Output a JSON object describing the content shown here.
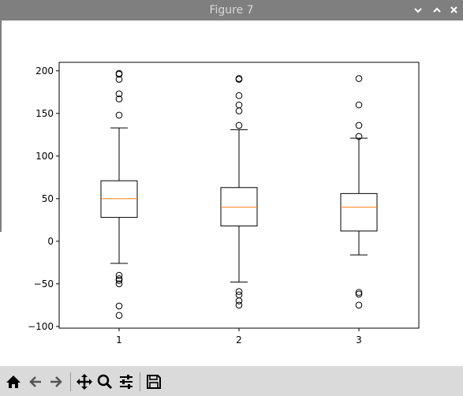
{
  "window": {
    "title": "Figure 7",
    "controls": {
      "minimize_icon": "chevron-down-icon",
      "maximize_icon": "chevron-up-icon",
      "close_icon": "close-icon"
    }
  },
  "toolbar": {
    "buttons": [
      {
        "name": "home-icon",
        "tooltip": "Reset original view"
      },
      {
        "name": "back-icon",
        "tooltip": "Back to previous view"
      },
      {
        "name": "forward-icon",
        "tooltip": "Forward to next view"
      },
      {
        "name": "pan-icon",
        "tooltip": "Pan axes"
      },
      {
        "name": "zoom-icon",
        "tooltip": "Zoom to rectangle"
      },
      {
        "name": "configure-subplots-icon",
        "tooltip": "Configure subplots"
      },
      {
        "name": "save-icon",
        "tooltip": "Save the figure"
      }
    ]
  },
  "colors": {
    "titlebar": "#7f7f7f",
    "toolbar": "#dadada",
    "median": "#ff7f0e",
    "box": "#000000"
  },
  "chart_data": {
    "type": "boxplot",
    "title": "",
    "xlabel": "",
    "ylabel": "",
    "ylim": [
      -102,
      210
    ],
    "xlim": [
      0.5,
      3.5
    ],
    "yticks": [
      -100,
      -50,
      0,
      50,
      100,
      150,
      200
    ],
    "ytick_labels": [
      "−100",
      "−50",
      "0",
      "50",
      "100",
      "150",
      "200"
    ],
    "categories": [
      "1",
      "2",
      "3"
    ],
    "boxes": [
      {
        "label": "1",
        "whisker_low": -26,
        "q1": 28,
        "median": 50,
        "q3": 71,
        "whisker_high": 133,
        "fliers": [
          197,
          196,
          190,
          173,
          167,
          148,
          -40,
          -44,
          -46,
          -50,
          -76,
          -87
        ]
      },
      {
        "label": "2",
        "whisker_low": -48,
        "q1": 18,
        "median": 40,
        "q3": 63,
        "whisker_high": 131,
        "fliers": [
          191,
          190,
          171,
          160,
          153,
          136,
          -59,
          -63,
          -70,
          -75
        ]
      },
      {
        "label": "3",
        "whisker_low": -16,
        "q1": 12,
        "median": 40,
        "q3": 56,
        "whisker_high": 121,
        "fliers": [
          191,
          160,
          136,
          123,
          -60,
          -62,
          -75
        ]
      }
    ],
    "grid": false,
    "legend": "none"
  }
}
